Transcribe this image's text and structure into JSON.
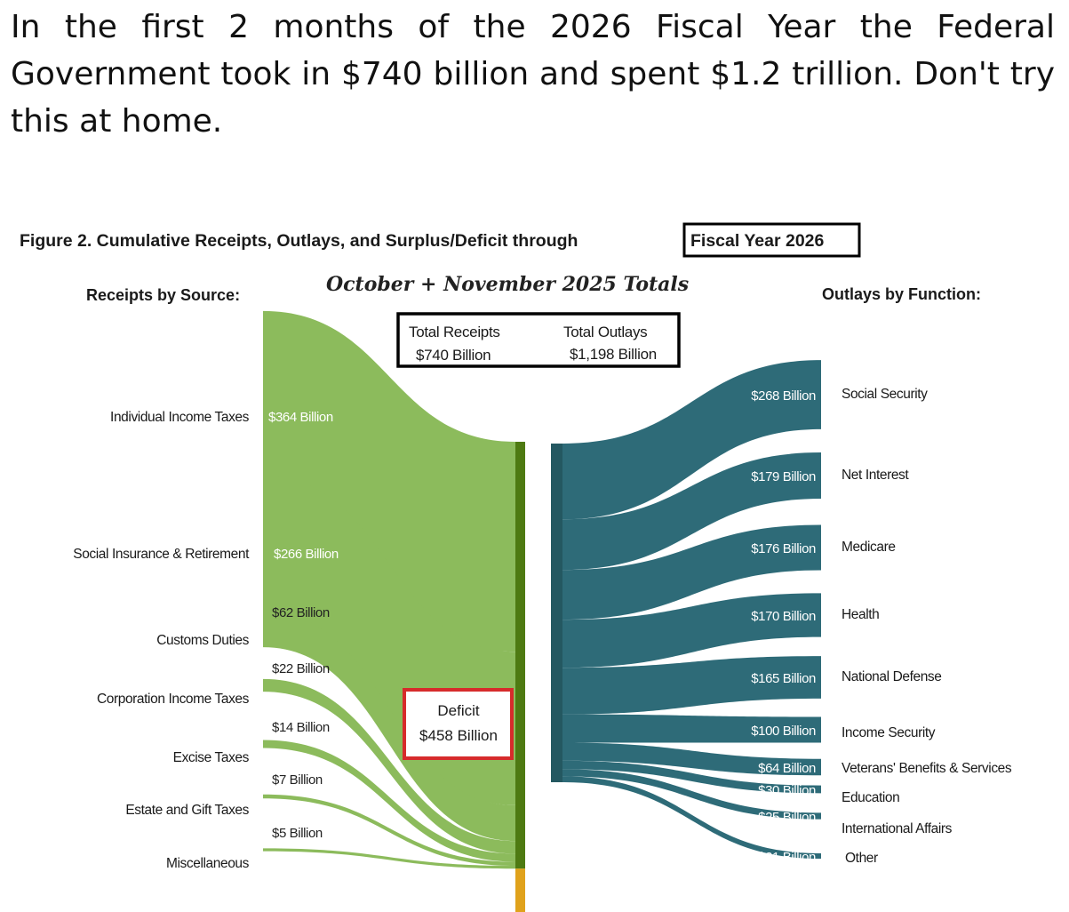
{
  "headline": "In the first 2 months of the 2026 Fiscal Year the Federal Government took in $740 billion and spent $1.2 trillion. Don't try this at home.",
  "figure": {
    "title_main": "Figure 2. Cumulative Receipts, Outlays, and Surplus/Deficit through",
    "title_boxed": "Fiscal Year 2026",
    "subtitle": "October + November 2025 Totals",
    "receipts_header": "Receipts by Source:",
    "outlays_header": "Outlays by Function:",
    "totals": {
      "receipts_label": "Total Receipts",
      "receipts_value": "$740 Billion",
      "outlays_label": "Total Outlays",
      "outlays_value": "$1,198 Billion"
    },
    "deficit": {
      "label": "Deficit",
      "value": "$458 Billion"
    }
  },
  "colors": {
    "receipts": "#8cbb5c",
    "receipts_bar": "#4e7a12",
    "deficit_bar": "#e0a21c",
    "outlays": "#2e6b78",
    "outlays_bar": "#245861",
    "deficit_box": "#d62b2b"
  },
  "chart_data": {
    "type": "sankey",
    "units": "Billion",
    "receipts": [
      {
        "name": "Individual Income Taxes",
        "value": 364,
        "label": "$364 Billion"
      },
      {
        "name": "Social Insurance & Retirement",
        "value": 266,
        "label": "$266 Billion"
      },
      {
        "name": "Customs Duties",
        "value": 62,
        "label": "$62 Billion"
      },
      {
        "name": "Corporation Income Taxes",
        "value": 22,
        "label": "$22 Billion"
      },
      {
        "name": "Excise Taxes",
        "value": 14,
        "label": "$14 Billion"
      },
      {
        "name": "Estate and Gift Taxes",
        "value": 7,
        "label": "$7 Billion"
      },
      {
        "name": "Miscellaneous",
        "value": 5,
        "label": "$5 Billion"
      }
    ],
    "outlays": [
      {
        "name": "Social Security",
        "value": 268,
        "label": "$268 Billion"
      },
      {
        "name": "Net Interest",
        "value": 179,
        "label": "$179 Billion"
      },
      {
        "name": "Medicare",
        "value": 176,
        "label": "$176 Billion"
      },
      {
        "name": "Health",
        "value": 170,
        "label": "$170 Billion"
      },
      {
        "name": "National Defense",
        "value": 165,
        "label": "$165 Billion"
      },
      {
        "name": "Income Security",
        "value": 100,
        "label": "$100 Billion"
      },
      {
        "name": "Veterans' Benefits & Services",
        "value": 64,
        "label": "$64 Billion"
      },
      {
        "name": "Education",
        "value": 30,
        "label": "$30 Billion"
      },
      {
        "name": "International Affairs",
        "value": 25,
        "label": "$25 Billion"
      },
      {
        "name": "Other",
        "value": 21,
        "label": "$21 Billion"
      }
    ],
    "total_receipts": 740,
    "total_outlays": 1198,
    "deficit": 458
  }
}
